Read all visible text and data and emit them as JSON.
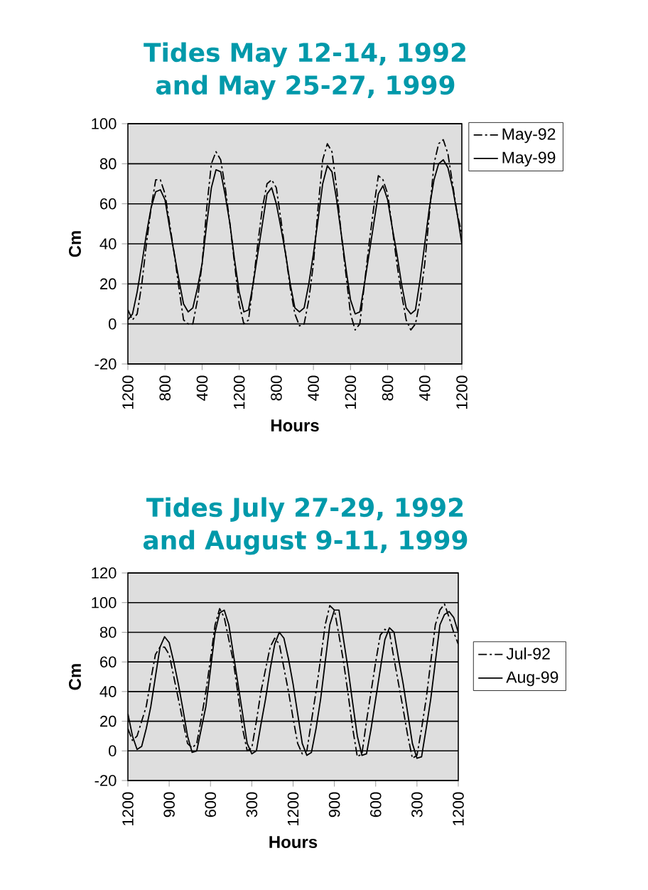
{
  "chart_data": [
    {
      "type": "line",
      "title": "Tides May 12-14, 1992 and May 25-27, 1999",
      "xlabel": "Hours",
      "ylabel": "Cm",
      "ylim": [
        -20,
        100
      ],
      "categories": [
        "1200",
        null,
        null,
        null,
        null,
        null,
        null,
        null,
        "800",
        null,
        null,
        null,
        null,
        null,
        null,
        null,
        "400",
        null,
        null,
        null,
        null,
        null,
        null,
        null,
        "1200",
        null,
        null,
        null,
        null,
        null,
        null,
        null,
        "800",
        null,
        null,
        null,
        null,
        null,
        null,
        null,
        "400",
        null,
        null,
        null,
        null,
        null,
        null,
        null,
        "1200",
        null,
        null,
        null,
        null,
        null,
        null,
        null,
        "800",
        null,
        null,
        null,
        null,
        null,
        null,
        null,
        "400",
        null,
        null,
        null,
        null,
        null,
        null,
        null,
        "1200"
      ],
      "yticks": [
        -20,
        0,
        20,
        40,
        60,
        80,
        100
      ],
      "grid": "y",
      "legend": "top right",
      "marker": "none",
      "series": [
        {
          "name": "May-92",
          "color": "#000000",
          "line_style": "dashed",
          "values": [
            7,
            2,
            5,
            20,
            40,
            58,
            72,
            72,
            65,
            50,
            35,
            18,
            2,
            0,
            0,
            12,
            30,
            58,
            80,
            86,
            82,
            68,
            50,
            30,
            10,
            0,
            2,
            20,
            40,
            58,
            70,
            72,
            68,
            52,
            35,
            18,
            5,
            -1,
            0,
            12,
            30,
            58,
            82,
            90,
            86,
            68,
            45,
            25,
            5,
            -3,
            0,
            20,
            40,
            58,
            74,
            72,
            65,
            48,
            30,
            15,
            2,
            -3,
            0,
            12,
            30,
            55,
            80,
            90,
            92,
            85,
            70,
            55,
            45
          ]
        },
        {
          "name": "May-99",
          "color": "#000000",
          "line_style": "solid",
          "values": [
            2,
            5,
            16,
            30,
            45,
            58,
            66,
            67,
            62,
            48,
            35,
            22,
            10,
            6,
            8,
            18,
            30,
            50,
            68,
            77,
            76,
            64,
            50,
            32,
            16,
            6,
            7,
            20,
            35,
            50,
            65,
            68,
            60,
            48,
            35,
            20,
            8,
            6,
            8,
            20,
            35,
            52,
            70,
            79,
            76,
            62,
            45,
            28,
            12,
            5,
            6,
            20,
            35,
            50,
            65,
            69,
            62,
            48,
            35,
            20,
            8,
            5,
            7,
            22,
            40,
            58,
            72,
            80,
            82,
            78,
            68,
            55,
            40
          ]
        }
      ]
    },
    {
      "type": "line",
      "title": "Tides July 27-29, 1992 and August 9-11, 1999",
      "xlabel": "Hours",
      "ylabel": "Cm",
      "ylim": [
        -20,
        120
      ],
      "categories": [
        "1200",
        null,
        null,
        null,
        null,
        null,
        null,
        null,
        null,
        "900",
        null,
        null,
        null,
        null,
        null,
        null,
        null,
        null,
        "600",
        null,
        null,
        null,
        null,
        null,
        null,
        null,
        null,
        "300",
        null,
        null,
        null,
        null,
        null,
        null,
        null,
        null,
        "1200",
        null,
        null,
        null,
        null,
        null,
        null,
        null,
        null,
        "900",
        null,
        null,
        null,
        null,
        null,
        null,
        null,
        null,
        "600",
        null,
        null,
        null,
        null,
        null,
        null,
        null,
        null,
        "300",
        null,
        null,
        null,
        null,
        null,
        null,
        null,
        null,
        "1200"
      ],
      "yticks": [
        -20,
        0,
        20,
        40,
        60,
        80,
        100,
        120
      ],
      "grid": "y",
      "legend": "right",
      "marker": "none",
      "series": [
        {
          "name": "Jul-92",
          "color": "#000000",
          "line_style": "dashed",
          "values": [
            15,
            7,
            10,
            20,
            30,
            48,
            65,
            70,
            70,
            65,
            50,
            35,
            20,
            5,
            2,
            5,
            22,
            40,
            62,
            85,
            96,
            90,
            75,
            60,
            38,
            15,
            0,
            2,
            20,
            40,
            55,
            70,
            76,
            72,
            56,
            40,
            22,
            5,
            -2,
            0,
            20,
            40,
            62,
            85,
            98,
            95,
            78,
            60,
            38,
            15,
            -4,
            -2,
            20,
            40,
            60,
            78,
            82,
            80,
            62,
            45,
            28,
            10,
            -5,
            -3,
            15,
            35,
            60,
            85,
            95,
            99,
            90,
            80,
            72
          ]
        },
        {
          "name": "Aug-99",
          "color": "#000000",
          "line_style": "solid",
          "values": [
            25,
            10,
            1,
            3,
            15,
            30,
            50,
            70,
            77,
            73,
            60,
            45,
            28,
            10,
            -1,
            0,
            15,
            30,
            55,
            80,
            93,
            95,
            85,
            65,
            45,
            25,
            5,
            -2,
            0,
            18,
            35,
            55,
            72,
            80,
            76,
            62,
            45,
            25,
            5,
            -3,
            -1,
            15,
            35,
            60,
            85,
            95,
            95,
            75,
            55,
            32,
            10,
            -3,
            -2,
            15,
            35,
            55,
            75,
            83,
            80,
            62,
            45,
            25,
            5,
            -5,
            -4,
            15,
            35,
            60,
            85,
            92,
            94,
            90,
            80
          ]
        }
      ]
    }
  ]
}
